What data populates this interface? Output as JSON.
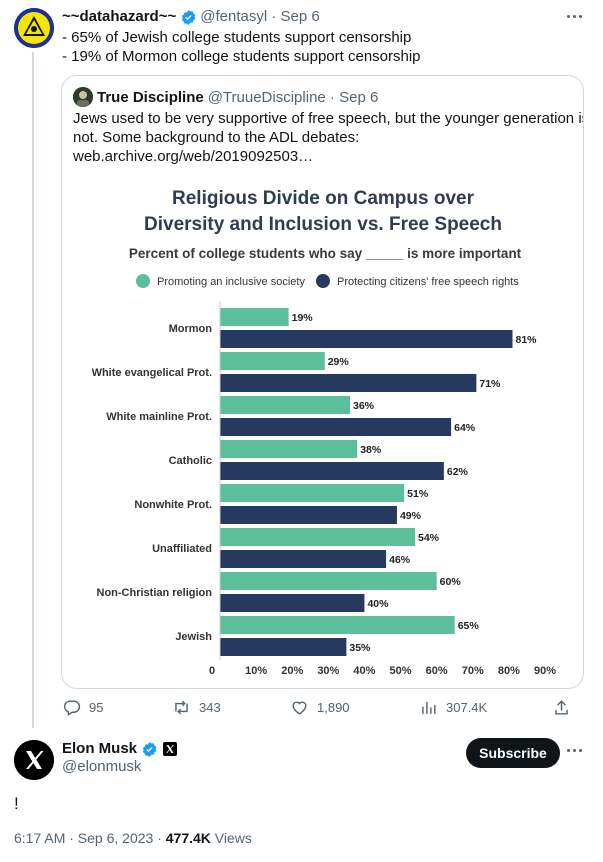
{
  "tweet": {
    "author_name": "~~datahazard~~",
    "handle": "@fentasyl",
    "date": "Sep 6",
    "lines": [
      "- 65% of Jewish college students support censorship",
      "- 19% of Mormon college students support censorship"
    ],
    "stats": {
      "replies": "95",
      "retweets": "343",
      "likes": "1,890",
      "views": "307.4K"
    }
  },
  "quote": {
    "author_name": "True Discipline",
    "handle": "@TruueDiscipline",
    "date": "Sep 6",
    "lines": [
      "Jews used to be very supportive of free speech, but the younger generation is",
      "not. Some background to the ADL debates:",
      "web.archive.org/web/2019092503…"
    ]
  },
  "reply": {
    "author_name": "Elon Musk",
    "handle": "@elonmusk",
    "subscribe_label": "Subscribe",
    "text": "!",
    "time": "6:17 AM · Sep 6, 2023 · ",
    "views_count": "477.4K",
    "views_label": " Views"
  },
  "colors": {
    "accent_blue": "#1d9bf0",
    "series_green": "#5bbf9c",
    "series_navy": "#253a5e"
  },
  "chart_data": {
    "type": "bar",
    "orientation": "horizontal",
    "title": [
      "Religious Divide on Campus over",
      "Diversity and Inclusion vs. Free Speech"
    ],
    "subtitle": "Percent of college students who say _____ is more important",
    "categories": [
      "Mormon",
      "White evangelical Prot.",
      "White mainline Prot.",
      "Catholic",
      "Nonwhite Prot.",
      "Unaffiliated",
      "Non-Christian religion",
      "Jewish"
    ],
    "series": [
      {
        "name": "Promoting an inclusive society",
        "color": "#5bbf9c",
        "values": [
          19,
          29,
          36,
          38,
          51,
          54,
          60,
          65
        ]
      },
      {
        "name": "Protecting citizens' free speech rights",
        "color": "#253a5e",
        "values": [
          81,
          71,
          64,
          62,
          49,
          46,
          40,
          35
        ]
      }
    ],
    "xlim": [
      0,
      90
    ],
    "xticks": [
      "0",
      "10%",
      "20%",
      "30%",
      "40%",
      "50%",
      "60%",
      "70%",
      "80%",
      "90%"
    ],
    "legend_position": "top",
    "grid": false
  }
}
